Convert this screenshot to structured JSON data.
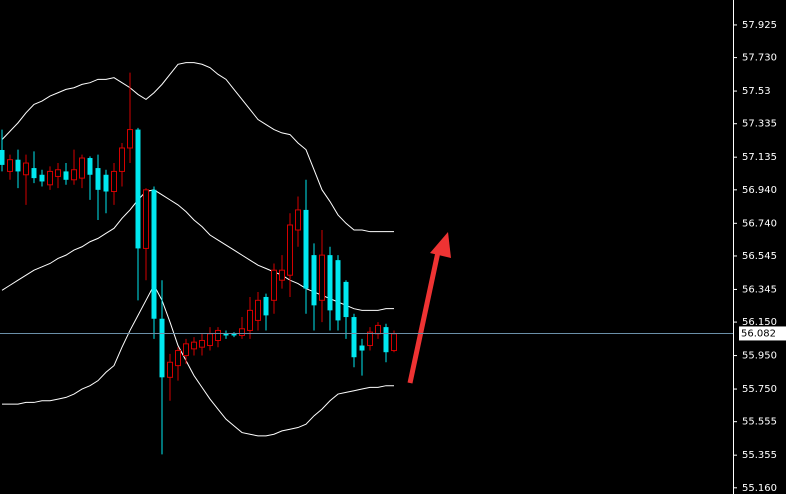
{
  "chart_data": {
    "type": "candlestick",
    "categories": [
      null,
      null,
      null,
      null,
      null,
      null,
      null,
      null,
      null,
      null,
      null,
      null,
      null,
      null,
      null,
      null,
      null,
      null,
      null,
      null,
      null,
      null,
      null,
      null,
      null,
      null,
      null,
      null,
      null,
      null,
      null,
      null,
      null,
      null,
      null,
      null,
      null,
      null,
      null,
      null,
      null,
      null,
      null,
      null,
      null,
      null,
      null,
      null,
      null,
      null
    ],
    "open": [
      57.178,
      57.05,
      57.12,
      57.03,
      57.07,
      57.03,
      56.97,
      57.02,
      57.05,
      57.0,
      57.01,
      57.13,
      57.07,
      57.03,
      56.93,
      57.05,
      57.19,
      57.3,
      56.59,
      56.94,
      56.17,
      55.82,
      55.89,
      55.95,
      55.99,
      56.0,
      56.01,
      56.04,
      56.08,
      56.08,
      56.07,
      56.1,
      56.16,
      56.3,
      56.28,
      56.4,
      56.43,
      56.7,
      56.82,
      56.55,
      56.28,
      56.55,
      56.52,
      56.39,
      56.18,
      56.01,
      56.01,
      56.08,
      56.12,
      55.98
    ],
    "high": [
      57.3,
      57.15,
      57.18,
      57.15,
      57.17,
      57.06,
      57.08,
      57.1,
      57.1,
      57.18,
      57.15,
      57.14,
      57.15,
      57.06,
      57.1,
      57.22,
      57.64,
      57.31,
      56.95,
      56.96,
      56.4,
      55.96,
      56.0,
      56.05,
      56.06,
      56.08,
      56.12,
      56.12,
      56.1,
      56.09,
      56.18,
      56.3,
      56.33,
      56.32,
      56.5,
      56.55,
      56.8,
      56.9,
      57.0,
      56.62,
      56.7,
      56.6,
      56.55,
      56.4,
      56.2,
      56.05,
      56.12,
      56.15,
      56.14,
      56.1
    ],
    "low": [
      57.05,
      57.0,
      56.95,
      56.85,
      56.98,
      56.96,
      56.94,
      56.95,
      56.97,
      56.97,
      56.95,
      56.88,
      56.76,
      56.8,
      56.85,
      56.96,
      57.1,
      56.28,
      56.4,
      56.05,
      55.36,
      55.68,
      55.8,
      55.9,
      55.95,
      55.95,
      55.98,
      56.0,
      56.05,
      56.06,
      56.05,
      56.05,
      56.1,
      56.1,
      56.2,
      56.35,
      56.3,
      56.6,
      56.2,
      56.1,
      56.15,
      56.1,
      56.1,
      56.05,
      55.88,
      55.83,
      55.98,
      56.05,
      55.91,
      55.97
    ],
    "close": [
      57.089,
      57.12,
      57.05,
      57.1,
      57.01,
      56.99,
      57.05,
      57.06,
      57.0,
      57.06,
      57.13,
      57.03,
      56.94,
      56.93,
      57.05,
      57.19,
      57.3,
      56.59,
      56.94,
      56.17,
      55.82,
      55.91,
      55.98,
      56.02,
      56.03,
      56.04,
      56.08,
      56.1,
      56.07,
      56.07,
      56.11,
      56.22,
      56.28,
      56.19,
      56.46,
      56.46,
      56.73,
      56.82,
      56.35,
      56.25,
      56.55,
      56.22,
      56.16,
      56.18,
      55.94,
      55.98,
      56.09,
      56.13,
      55.97,
      56.08
    ],
    "up_color": "#d40000",
    "down_color": "#00e8f0",
    "bands": [
      {
        "color": "#ffffff",
        "values": [
          57.24,
          57.29,
          57.34,
          57.4,
          57.45,
          57.47,
          57.5,
          57.52,
          57.54,
          57.55,
          57.57,
          57.58,
          57.6,
          57.6,
          57.61,
          57.58,
          57.55,
          57.51,
          57.48,
          57.52,
          57.57,
          57.63,
          57.69,
          57.7,
          57.7,
          57.69,
          57.67,
          57.63,
          57.6,
          57.54,
          57.48,
          57.42,
          57.36,
          57.33,
          57.3,
          57.28,
          57.27,
          57.22,
          57.18,
          57.06,
          56.94,
          56.87,
          56.79,
          56.74,
          56.7,
          56.7,
          56.69,
          56.69,
          56.69,
          56.69
        ]
      },
      {
        "color": "#ffffff",
        "values": [
          56.34,
          56.37,
          56.4,
          56.43,
          56.46,
          56.48,
          56.5,
          56.53,
          56.55,
          56.58,
          56.6,
          56.63,
          56.65,
          56.68,
          56.71,
          56.77,
          56.82,
          56.88,
          56.93,
          56.94,
          56.91,
          56.88,
          56.85,
          56.81,
          56.76,
          56.72,
          56.67,
          56.64,
          56.61,
          56.58,
          56.55,
          56.52,
          56.49,
          56.47,
          56.45,
          56.43,
          56.4,
          56.38,
          56.35,
          56.33,
          56.31,
          56.29,
          56.27,
          56.25,
          56.23,
          56.22,
          56.22,
          56.22,
          56.23,
          56.23
        ]
      },
      {
        "color": "#ffffff",
        "values": [
          55.66,
          55.66,
          55.66,
          55.67,
          55.67,
          55.68,
          55.68,
          55.69,
          55.7,
          55.72,
          55.75,
          55.77,
          55.8,
          55.85,
          55.89,
          56.0,
          56.1,
          56.19,
          56.28,
          56.37,
          56.28,
          56.15,
          56.01,
          55.92,
          55.83,
          55.76,
          55.69,
          55.63,
          55.57,
          55.53,
          55.49,
          55.48,
          55.47,
          55.47,
          55.48,
          55.5,
          55.51,
          55.52,
          55.54,
          55.59,
          55.63,
          55.68,
          55.72,
          55.73,
          55.74,
          55.75,
          55.76,
          55.76,
          55.77,
          55.77
        ]
      }
    ],
    "current_price": 56.082,
    "current_price_color": "#6a8fa8",
    "ylim": [
      55.123,
      58.074
    ],
    "yticks": [
      57.925,
      {
        "value": 57.73,
        "label": "57.730"
      },
      57.53,
      57.335,
      57.135,
      {
        "value": 56.94,
        "label": "56.940"
      },
      {
        "value": 56.74,
        "label": "56.740"
      },
      56.545,
      56.345,
      {
        "value": 56.15,
        "label": "56.150"
      },
      {
        "value": 55.95,
        "label": "55.950"
      },
      {
        "value": 55.75,
        "label": "55.750"
      },
      55.555,
      55.355,
      {
        "value": 55.16,
        "label": "55.160"
      }
    ]
  }
}
